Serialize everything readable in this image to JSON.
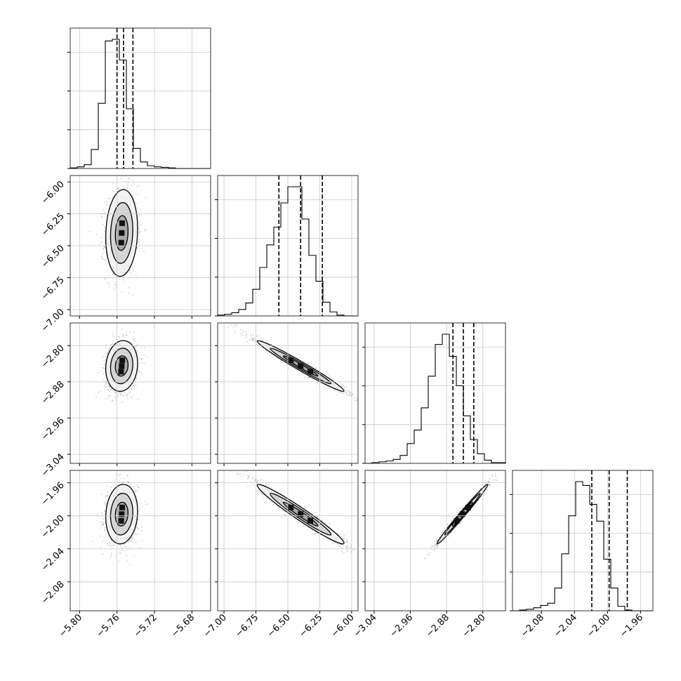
{
  "chart_data": {
    "type": "corner",
    "title": "",
    "xlabel": "",
    "ylabel": "",
    "grid": true,
    "parameters": [
      {
        "range": [
          -5.81,
          -5.66
        ],
        "ticks": [
          -5.8,
          -5.76,
          -5.72,
          -5.68
        ],
        "tick_labels": [
          "−5.80",
          "−5.76",
          "−5.72",
          "−5.68"
        ],
        "quantiles": [
          -5.76,
          -5.753,
          -5.743
        ],
        "hist_counts": [
          1,
          3,
          7,
          35,
          120,
          235,
          238,
          200,
          110,
          37,
          12,
          5,
          3,
          2,
          1,
          0,
          0,
          0,
          0,
          0
        ]
      },
      {
        "range": [
          -7.05,
          -5.95
        ],
        "ticks": [
          -7.0,
          -6.75,
          -6.5,
          -6.25,
          -6.0
        ],
        "tick_labels": [
          "−7.00",
          "−6.75",
          "−6.50",
          "−6.25",
          "−6.00"
        ],
        "quantiles": [
          -6.57,
          -6.4,
          -6.23
        ],
        "hist_counts": [
          1,
          2,
          4,
          8,
          16,
          33,
          60,
          88,
          110,
          140,
          160,
          160,
          120,
          75,
          43,
          17,
          5,
          1,
          0,
          0
        ]
      },
      {
        "range": [
          -3.06,
          -2.75
        ],
        "ticks": [
          -3.04,
          -2.96,
          -2.88,
          -2.8
        ],
        "tick_labels": [
          "−3.04",
          "−2.96",
          "−2.88",
          "−2.80"
        ],
        "quantiles": [
          -2.866,
          -2.843,
          -2.82
        ],
        "hist_counts": [
          0,
          1,
          2,
          3,
          5,
          10,
          25,
          42,
          70,
          110,
          150,
          163,
          135,
          98,
          60,
          30,
          12,
          4,
          1,
          1
        ]
      },
      {
        "range": [
          -2.115,
          -1.945
        ],
        "ticks": [
          -2.08,
          -2.04,
          -2.0,
          -1.96
        ],
        "tick_labels": [
          "−2.08",
          "−2.04",
          "−2.00",
          "−1.96"
        ],
        "quantiles": [
          -2.019,
          -1.998,
          -1.976
        ],
        "hist_counts": [
          0,
          1,
          2,
          4,
          7,
          10,
          30,
          75,
          125,
          170,
          165,
          140,
          118,
          68,
          30,
          6,
          1,
          0,
          0,
          0
        ]
      }
    ],
    "pairs": [
      {
        "row": 1,
        "col": 0,
        "center": [
          -5.755,
          -6.4
        ],
        "std": [
          0.0085,
          0.17
        ],
        "corr": 0.1
      },
      {
        "row": 2,
        "col": 0,
        "center": [
          -5.755,
          -2.845
        ],
        "std": [
          0.0085,
          0.028
        ],
        "corr": 0.1
      },
      {
        "row": 2,
        "col": 1,
        "center": [
          -6.4,
          -2.845
        ],
        "std": [
          0.17,
          0.028
        ],
        "corr": -0.98
      },
      {
        "row": 3,
        "col": 0,
        "center": [
          -5.755,
          -1.998
        ],
        "std": [
          0.0085,
          0.018
        ],
        "corr": 0.1
      },
      {
        "row": 3,
        "col": 1,
        "center": [
          -6.4,
          -1.998
        ],
        "std": [
          0.17,
          0.018
        ],
        "corr": -0.97
      },
      {
        "row": 3,
        "col": 2,
        "center": [
          -2.845,
          -1.998
        ],
        "std": [
          0.028,
          0.018
        ],
        "corr": 0.99
      }
    ]
  }
}
